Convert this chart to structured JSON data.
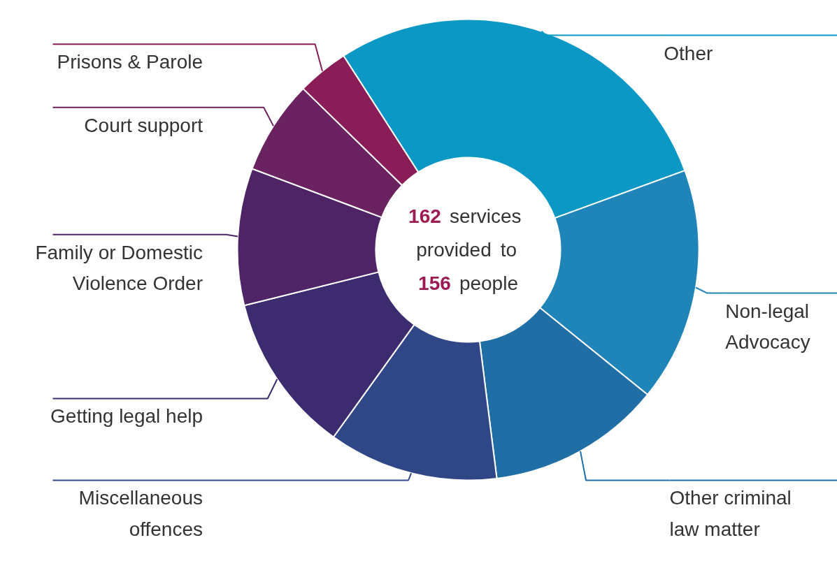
{
  "chart_data": {
    "type": "donut",
    "categories": [
      "Other",
      "Non-legal Advocacy",
      "Other criminal law matter",
      "Miscellaneous offences",
      "Getting legal help",
      "Family or Domestic Violence Order",
      "Court support",
      "Prisons & Parole"
    ],
    "values": [
      28.5,
      16.4,
      12.2,
      11.9,
      11.2,
      9.6,
      6.6,
      3.6
    ],
    "colors": [
      "#0b98c5",
      "#1f84b8",
      "#1f6ea5",
      "#2f4787",
      "#3d2b70",
      "#4e2466",
      "#6a2260",
      "#8a1d57"
    ],
    "annotations": [
      "162 services provided to 156 people"
    ]
  }
}
